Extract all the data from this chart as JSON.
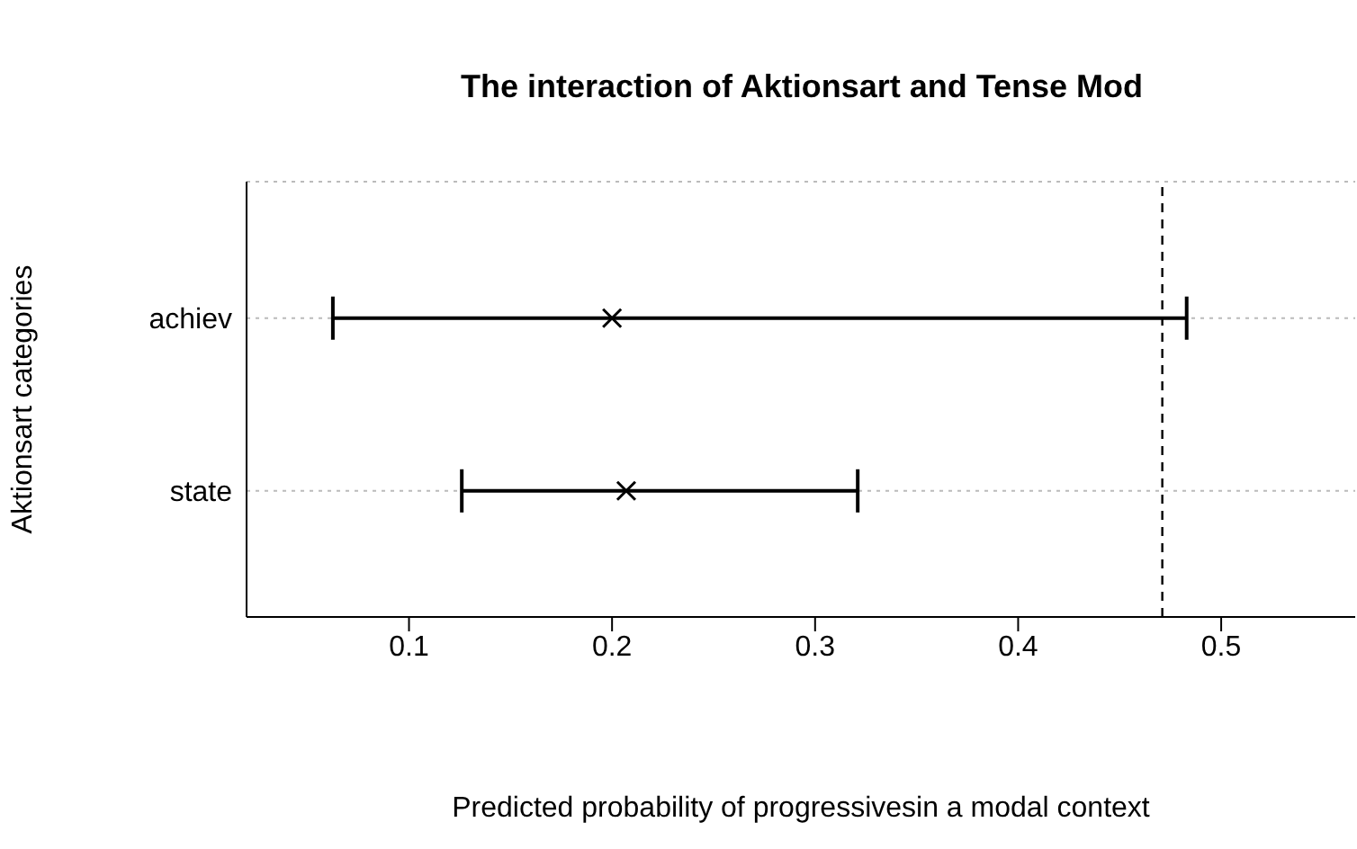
{
  "chart_data": {
    "type": "scatter",
    "title": "The interaction of Aktionsart and Tense Mod",
    "xlabel": "Predicted probability of progressivesin a modal context",
    "ylabel": "Aktionsart categories",
    "orientation": "horizontal",
    "categories": [
      "achiev",
      "state"
    ],
    "values": [
      0.2,
      0.207
    ],
    "errors": [
      [
        0.0625,
        0.483
      ],
      [
        0.126,
        0.321
      ]
    ],
    "color": "#000000",
    "marker": "cross",
    "xlim": [
      0.02,
      0.566
    ],
    "xticks": [
      0.1,
      0.2,
      0.3,
      0.4,
      0.5
    ],
    "grid": "y",
    "ref_lines": [
      {
        "axis": "x",
        "value": 0.471,
        "line_style": "dashed",
        "color": "#000000"
      }
    ]
  }
}
